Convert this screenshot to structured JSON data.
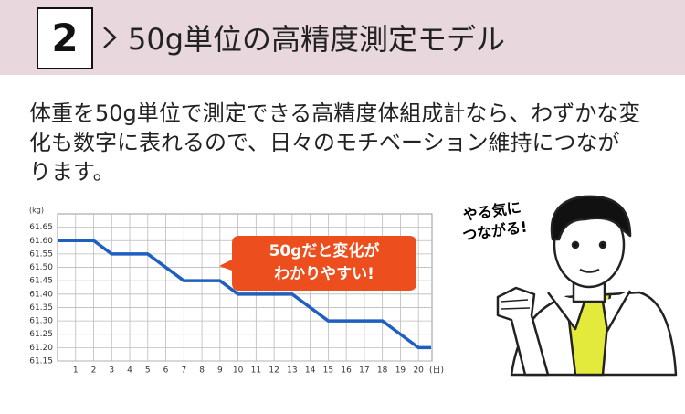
{
  "header": {
    "number": "2",
    "title": "50g単位の高精度測定モデル"
  },
  "body": {
    "lines": [
      "体重を50g単位で測定できる高精度体組成計なら、わずかな変",
      "化も数字に表れるので、日々のモチベーション維持につなが",
      "ります。"
    ]
  },
  "chart_data": {
    "type": "line",
    "y_unit": "(kg)",
    "x_unit": "(日)",
    "x": [
      0,
      1,
      2,
      3,
      4,
      5,
      6,
      7,
      8,
      9,
      10,
      11,
      12,
      13,
      14,
      15,
      16,
      17,
      18,
      19,
      20,
      20.7
    ],
    "values": [
      61.6,
      61.6,
      61.6,
      61.55,
      61.55,
      61.55,
      61.5,
      61.45,
      61.45,
      61.45,
      61.4,
      61.4,
      61.4,
      61.4,
      61.35,
      61.3,
      61.3,
      61.3,
      61.3,
      61.25,
      61.2,
      61.2
    ],
    "color": "#1f5fbf",
    "xlim": [
      0,
      20.75
    ],
    "xticks": [
      1,
      2,
      3,
      4,
      5,
      6,
      7,
      8,
      9,
      10,
      11,
      12,
      13,
      14,
      15,
      16,
      17,
      18,
      19,
      20
    ],
    "ylim": [
      61.15,
      61.7
    ],
    "yticks": [
      61.15,
      {
        "value": 61.2,
        "label": "61.20"
      },
      61.25,
      {
        "value": 61.3,
        "label": "61.30"
      },
      61.35,
      {
        "value": 61.4,
        "label": "61.40"
      },
      61.45,
      {
        "value": 61.5,
        "label": "61.50"
      },
      61.55,
      {
        "value": 61.6,
        "label": "61.60"
      },
      61.65
    ],
    "grid": true,
    "callout": [
      "50gだと変化が",
      "わかりやすい!"
    ]
  },
  "illustration": {
    "speech": [
      "やる気に",
      "つながる!"
    ]
  }
}
